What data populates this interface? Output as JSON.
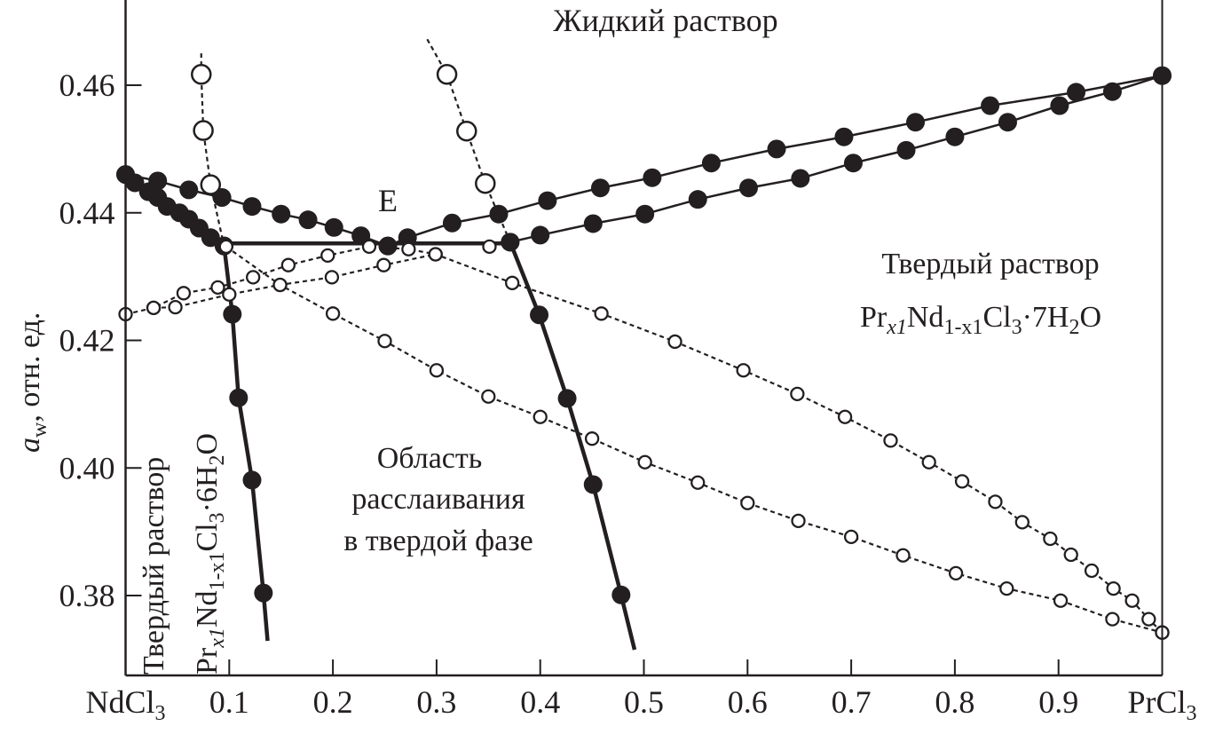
{
  "chart_data": {
    "type": "line",
    "title": "Жидкий раствор",
    "xlabel": "",
    "ylabel": {
      "symbol": "a",
      "sub": "w",
      "rest": ", отн. ед."
    },
    "xlim": [
      0,
      1
    ],
    "ylim": [
      0.3675,
      0.4735
    ],
    "grid": false,
    "x_ticks": [
      {
        "value": 0,
        "label": "NdCl",
        "sub": "3"
      },
      {
        "value": 0.1,
        "label": "0.1"
      },
      {
        "value": 0.2,
        "label": "0.2"
      },
      {
        "value": 0.3,
        "label": "0.3"
      },
      {
        "value": 0.4,
        "label": "0.4"
      },
      {
        "value": 0.5,
        "label": "0.5"
      },
      {
        "value": 0.6,
        "label": "0.6"
      },
      {
        "value": 0.7,
        "label": "0.7"
      },
      {
        "value": 0.8,
        "label": "0.8"
      },
      {
        "value": 0.9,
        "label": "0.9"
      },
      {
        "value": 1,
        "label": "PrCl",
        "sub": "3"
      }
    ],
    "y_ticks": [
      {
        "value": 0.38,
        "label": "0.38"
      },
      {
        "value": 0.4,
        "label": "0.40"
      },
      {
        "value": 0.42,
        "label": "0.42"
      },
      {
        "value": 0.44,
        "label": "0.44"
      },
      {
        "value": 0.46,
        "label": "0.46"
      }
    ],
    "annotations": {
      "eutonic": "E",
      "solid_7": {
        "line1": "Твердый раствор",
        "formula": [
          "Pr",
          "x1",
          "Nd",
          "1-x1",
          "Cl",
          "3",
          "·7H",
          "2",
          "O"
        ]
      },
      "solid_6": {
        "line1": "Твердый раствор",
        "formula": [
          "Pr",
          "x1",
          "Nd",
          "1-x1",
          "Cl",
          "3",
          "·6H",
          "2",
          "O"
        ]
      },
      "gap": [
        "Область",
        "расслаивания",
        "в твердой фазе"
      ]
    },
    "series": [
      {
        "marker": "filled",
        "line": "solid",
        "x": [
          0,
          0.031,
          0.061,
          0.093,
          0.122,
          0.15,
          0.176,
          0.201,
          0.227,
          0.253
        ],
        "y": [
          0.446,
          0.445,
          0.4436,
          0.4424,
          0.441,
          0.4398,
          0.4389,
          0.4377,
          0.4364,
          0.4348
        ]
      },
      {
        "marker": "filled",
        "line": "solid",
        "x": [
          0,
          0.009,
          0.022,
          0.031,
          0.04,
          0.052,
          0.061,
          0.071,
          0.082,
          0.095
        ],
        "y": [
          0.446,
          0.4447,
          0.4433,
          0.4424,
          0.441,
          0.44,
          0.439,
          0.4376,
          0.4361,
          0.4348
        ]
      },
      {
        "marker": "filled",
        "line": "solid",
        "x": [
          0.253,
          0.272,
          0.315,
          0.36,
          0.407,
          0.458,
          0.508,
          0.565,
          0.628,
          0.693,
          0.762,
          0.834,
          0.917,
          1.0
        ],
        "y": [
          0.4348,
          0.4361,
          0.4384,
          0.4398,
          0.4419,
          0.4439,
          0.4455,
          0.4478,
          0.45,
          0.4519,
          0.4542,
          0.4568,
          0.4589,
          0.4615
        ]
      },
      {
        "marker": "filled",
        "line": "solid",
        "x": [
          0.371,
          0.4,
          0.451,
          0.501,
          0.552,
          0.601,
          0.651,
          0.702,
          0.753,
          0.8,
          0.851,
          0.901,
          0.952,
          1.0
        ],
        "y": [
          0.4354,
          0.4365,
          0.4383,
          0.4398,
          0.4421,
          0.4439,
          0.4454,
          0.4478,
          0.4498,
          0.4519,
          0.4542,
          0.4568,
          0.459,
          0.4615
        ]
      },
      {
        "marker": "none",
        "line": "thick",
        "x": [
          0.095,
          0.371
        ],
        "y": [
          0.4352,
          0.4352
        ]
      },
      {
        "marker": "filled",
        "line": "thick",
        "x": [
          0.095,
          0.103,
          0.109,
          0.122,
          0.133
        ],
        "y": [
          0.4348,
          0.4241,
          0.411,
          0.3981,
          0.3804
        ],
        "line_end": [
          0.137,
          0.3729
        ]
      },
      {
        "marker": "filled",
        "line": "thick",
        "x": [
          0.371,
          0.399,
          0.426,
          0.451,
          0.478
        ],
        "y": [
          0.4354,
          0.424,
          0.4109,
          0.3974,
          0.3801
        ],
        "line_end": [
          0.491,
          0.3715
        ]
      },
      {
        "marker": "open-large",
        "line": "dotted",
        "line_start": [
          0.073,
          0.465
        ],
        "x": [
          0.073,
          0.075,
          0.082
        ],
        "y": [
          0.4617,
          0.4529,
          0.4444
        ],
        "line_end": [
          0.095,
          0.4348
        ]
      },
      {
        "marker": "open-large",
        "line": "dotted",
        "line_start": [
          0.291,
          0.4672
        ],
        "x": [
          0.31,
          0.329,
          0.347
        ],
        "y": [
          0.4617,
          0.4528,
          0.4446
        ],
        "line_end": [
          0.371,
          0.4354
        ]
      },
      {
        "marker": "open-small",
        "line": "dotted",
        "x": [
          0,
          0.027,
          0.056,
          0.089,
          0.123,
          0.157,
          0.195,
          0.235,
          0.273,
          0.299,
          0.373,
          0.459,
          0.53,
          0.596,
          0.648,
          0.694,
          0.738,
          0.775,
          0.807,
          0.839,
          0.865,
          0.892,
          0.912,
          0.932,
          0.953,
          0.971,
          0.987,
          1.0
        ],
        "y": [
          0.4241,
          0.4251,
          0.4274,
          0.4283,
          0.4299,
          0.4318,
          0.4333,
          0.4347,
          0.4343,
          0.4335,
          0.429,
          0.4242,
          0.4198,
          0.4153,
          0.4116,
          0.408,
          0.4043,
          0.4009,
          0.3979,
          0.3947,
          0.3915,
          0.3889,
          0.3864,
          0.3839,
          0.3811,
          0.3792,
          0.3763,
          0.3742
        ]
      },
      {
        "marker": "open-small",
        "line": "dotted",
        "x": [
          0.027,
          0.048,
          0.1,
          0.149,
          0.199,
          0.249,
          0.299
        ],
        "y": [
          0.4251,
          0.4252,
          0.4272,
          0.4287,
          0.4299,
          0.4318,
          0.4335
        ]
      },
      {
        "marker": "open-small",
        "line": "dotted",
        "x": [
          0.097,
          0.149,
          0.2,
          0.25,
          0.3,
          0.35,
          0.4,
          0.45,
          0.501,
          0.552,
          0.6,
          0.649,
          0.7,
          0.75,
          0.801,
          0.85,
          0.902,
          0.952,
          1.0
        ],
        "y": [
          0.4347,
          0.4287,
          0.4242,
          0.4199,
          0.4153,
          0.4112,
          0.408,
          0.4046,
          0.4009,
          0.3977,
          0.3945,
          0.3917,
          0.3892,
          0.3863,
          0.3835,
          0.3811,
          0.3792,
          0.3763,
          0.3742
        ]
      },
      {
        "marker": "open-small",
        "line": "none",
        "x": [
          0.351
        ],
        "y": [
          0.4347
        ]
      }
    ],
    "colors": {
      "ink": "#231f20",
      "background": "#ffffff"
    }
  }
}
